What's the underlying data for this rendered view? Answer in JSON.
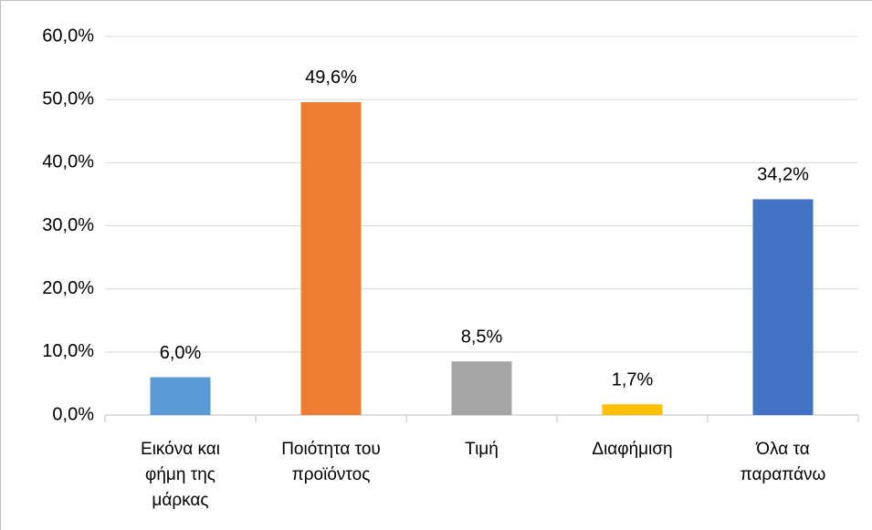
{
  "chart_data": {
    "type": "bar",
    "categories": [
      "Εικόνα και φήμη της μάρκας",
      "Ποιότητα του προϊόντος",
      "Τιμή",
      "Διαφήμιση",
      "Όλα τα παραπάνω"
    ],
    "values": [
      6.0,
      49.6,
      8.5,
      1.7,
      34.2
    ],
    "value_labels": [
      "6,0%",
      "49,6%",
      "8,5%",
      "1,7%",
      "34,2%"
    ],
    "colors": [
      "#5b9bd5",
      "#ed7d31",
      "#a5a5a5",
      "#ffc000",
      "#4472c4"
    ],
    "ylim": [
      0,
      60
    ],
    "yticks": [
      {
        "value": 0,
        "label": "0,0%"
      },
      {
        "value": 10,
        "label": "10,0%"
      },
      {
        "value": 20,
        "label": "20,0%"
      },
      {
        "value": 30,
        "label": "30,0%"
      },
      {
        "value": 40,
        "label": "40,0%"
      },
      {
        "value": 50,
        "label": "50,0%"
      },
      {
        "value": 60,
        "label": "60,0%"
      }
    ],
    "grid": true
  }
}
